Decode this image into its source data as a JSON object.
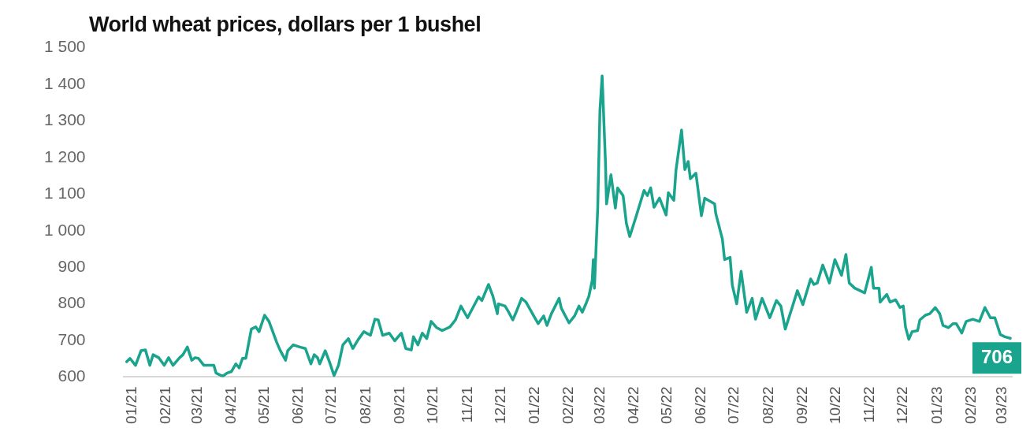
{
  "chart_data": {
    "type": "line",
    "title": "World wheat prices, dollars per 1 bushel",
    "x": [
      "2020-12-27",
      "2020-12-30",
      "2021-01-04",
      "2021-01-09",
      "2021-01-13",
      "2021-01-17",
      "2021-01-20",
      "2021-01-25",
      "2021-01-30",
      "2021-02-03",
      "2021-02-07",
      "2021-02-13",
      "2021-02-16",
      "2021-02-20",
      "2021-02-24",
      "2021-02-27",
      "2021-03-02",
      "2021-03-07",
      "2021-03-11",
      "2021-03-16",
      "2021-03-18",
      "2021-03-24",
      "2021-03-28",
      "2021-04-01",
      "2021-04-05",
      "2021-04-08",
      "2021-04-11",
      "2021-04-14",
      "2021-04-19",
      "2021-04-23",
      "2021-04-26",
      "2021-05-01",
      "2021-05-05",
      "2021-05-12",
      "2021-05-15",
      "2021-05-20",
      "2021-05-22",
      "2021-05-27",
      "2021-06-02",
      "2021-06-07",
      "2021-06-12",
      "2021-06-15",
      "2021-06-18",
      "2021-06-20",
      "2021-06-25",
      "2021-06-29",
      "2021-07-03",
      "2021-07-07",
      "2021-07-11",
      "2021-07-16",
      "2021-07-20",
      "2021-07-25",
      "2021-07-30",
      "2021-08-05",
      "2021-08-09",
      "2021-08-12",
      "2021-08-16",
      "2021-08-22",
      "2021-08-27",
      "2021-09-02",
      "2021-09-06",
      "2021-09-11",
      "2021-09-13",
      "2021-09-17",
      "2021-09-21",
      "2021-09-25",
      "2021-09-29",
      "2021-10-04",
      "2021-10-09",
      "2021-10-16",
      "2021-10-21",
      "2021-10-26",
      "2021-11-01",
      "2021-11-11",
      "2021-11-14",
      "2021-11-20",
      "2021-11-24",
      "2021-11-28",
      "2021-11-29",
      "2021-12-05",
      "2021-12-08",
      "2021-12-12",
      "2021-12-15",
      "2021-12-20",
      "2021-12-24",
      "2021-12-31",
      "2022-01-04",
      "2022-01-09",
      "2022-01-12",
      "2022-01-16",
      "2022-01-23",
      "2022-01-25",
      "2022-02-01",
      "2022-02-06",
      "2022-02-10",
      "2022-02-13",
      "2022-02-16",
      "2022-02-19",
      "2022-02-22",
      "2022-02-23",
      "2022-02-24",
      "2022-02-27",
      "2022-03-01",
      "2022-03-03",
      "2022-03-06",
      "2022-03-07",
      "2022-03-11",
      "2022-03-15",
      "2022-03-17",
      "2022-03-22",
      "2022-03-25",
      "2022-03-28",
      "2022-04-03",
      "2022-04-10",
      "2022-04-13",
      "2022-04-16",
      "2022-04-19",
      "2022-04-24",
      "2022-04-30",
      "2022-05-02",
      "2022-05-07",
      "2022-05-09",
      "2022-05-14",
      "2022-05-17",
      "2022-05-20",
      "2022-05-22",
      "2022-05-27",
      "2022-06-01",
      "2022-06-04",
      "2022-06-13",
      "2022-06-14",
      "2022-06-20",
      "2022-06-22",
      "2022-06-27",
      "2022-06-29",
      "2022-07-03",
      "2022-07-07",
      "2022-07-12",
      "2022-07-17",
      "2022-07-20",
      "2022-07-26",
      "2022-08-02",
      "2022-08-08",
      "2022-08-12",
      "2022-08-16",
      "2022-08-22",
      "2022-08-27",
      "2022-09-01",
      "2022-09-08",
      "2022-09-11",
      "2022-09-14",
      "2022-09-19",
      "2022-09-25",
      "2022-09-30",
      "2022-10-06",
      "2022-10-10",
      "2022-10-13",
      "2022-10-18",
      "2022-10-27",
      "2022-11-02",
      "2022-11-04",
      "2022-11-09",
      "2022-11-10",
      "2022-11-16",
      "2022-11-19",
      "2022-11-24",
      "2022-11-28",
      "2022-12-01",
      "2022-12-03",
      "2022-12-06",
      "2022-12-09",
      "2022-12-14",
      "2022-12-16",
      "2022-12-21",
      "2022-12-25",
      "2022-12-30",
      "2023-01-03",
      "2023-01-06",
      "2023-01-11",
      "2023-01-15",
      "2023-01-18",
      "2023-01-23",
      "2023-01-27",
      "2023-02-02",
      "2023-02-08",
      "2023-02-13",
      "2023-02-18",
      "2023-02-22",
      "2023-02-27",
      "2023-03-03",
      "2023-03-08"
    ],
    "series": [
      {
        "color": "#1aa48e",
        "values": [
          642,
          651,
          632,
          672,
          674,
          632,
          661,
          653,
          632,
          653,
          632,
          653,
          661,
          682,
          646,
          653,
          651,
          632,
          632,
          632,
          611,
          602,
          611,
          615,
          636,
          625,
          651,
          651,
          731,
          737,
          724,
          769,
          752,
          695,
          674,
          646,
          672,
          688,
          682,
          678,
          636,
          661,
          653,
          636,
          672,
          640,
          604,
          632,
          688,
          705,
          678,
          703,
          724,
          714,
          758,
          756,
          714,
          720,
          699,
          720,
          678,
          674,
          710,
          688,
          720,
          705,
          752,
          735,
          727,
          737,
          756,
          794,
          762,
          819,
          809,
          853,
          821,
          773,
          800,
          794,
          779,
          756,
          777,
          815,
          805,
          767,
          746,
          767,
          741,
          773,
          815,
          788,
          748,
          767,
          794,
          777,
          798,
          821,
          864,
          921,
          843,
          1062,
          1328,
          1423,
          1189,
          1073,
          1153,
          1062,
          1117,
          1096,
          1020,
          984,
          1041,
          1110,
          1096,
          1117,
          1064,
          1089,
          1043,
          1104,
          1083,
          1167,
          1275,
          1167,
          1189,
          1142,
          1157,
          1041,
          1089,
          1073,
          1047,
          977,
          921,
          927,
          851,
          800,
          889,
          777,
          815,
          758,
          815,
          762,
          809,
          794,
          731,
          788,
          836,
          798,
          868,
          853,
          857,
          906,
          857,
          921,
          878,
          935,
          857,
          843,
          830,
          900,
          843,
          843,
          805,
          826,
          805,
          811,
          790,
          794,
          737,
          703,
          724,
          727,
          756,
          769,
          773,
          790,
          773,
          741,
          735,
          746,
          746,
          720,
          752,
          758,
          752,
          790,
          762,
          762,
          716,
          710,
          706
        ]
      }
    ],
    "xlim": [
      "2020-12-24",
      "2023-03-10"
    ],
    "xticks": [
      {
        "value": "2021-01-01",
        "label": "01/21"
      },
      {
        "value": "2021-02-01",
        "label": "02/21"
      },
      {
        "value": "2021-03-01",
        "label": "03/21"
      },
      {
        "value": "2021-04-01",
        "label": "04/21"
      },
      {
        "value": "2021-05-01",
        "label": "05/21"
      },
      {
        "value": "2021-06-01",
        "label": "06/21"
      },
      {
        "value": "2021-07-01",
        "label": "07/21"
      },
      {
        "value": "2021-08-01",
        "label": "08/21"
      },
      {
        "value": "2021-09-01",
        "label": "09/21"
      },
      {
        "value": "2021-10-01",
        "label": "10/21"
      },
      {
        "value": "2021-11-01",
        "label": "11/21"
      },
      {
        "value": "2021-12-01",
        "label": "12/21"
      },
      {
        "value": "2022-01-01",
        "label": "01/22"
      },
      {
        "value": "2022-02-01",
        "label": "02/22"
      },
      {
        "value": "2022-03-01",
        "label": "03/22"
      },
      {
        "value": "2022-04-01",
        "label": "04/22"
      },
      {
        "value": "2022-05-01",
        "label": "05/22"
      },
      {
        "value": "2022-06-01",
        "label": "06/22"
      },
      {
        "value": "2022-07-01",
        "label": "07/22"
      },
      {
        "value": "2022-08-01",
        "label": "08/22"
      },
      {
        "value": "2022-09-01",
        "label": "09/22"
      },
      {
        "value": "2022-10-01",
        "label": "10/22"
      },
      {
        "value": "2022-11-01",
        "label": "11/22"
      },
      {
        "value": "2022-12-01",
        "label": "12/22"
      },
      {
        "value": "2023-01-01",
        "label": "01/23"
      },
      {
        "value": "2023-02-01",
        "label": "02/23"
      },
      {
        "value": "2023-03-01",
        "label": "03/23"
      }
    ],
    "ylim": [
      600,
      1500
    ],
    "yticks": [
      600,
      700,
      800,
      900,
      {
        "value": 1000,
        "label": "1 000"
      },
      {
        "value": 1100,
        "label": "1 100"
      },
      {
        "value": 1200,
        "label": "1 200"
      },
      {
        "value": 1300,
        "label": "1 300"
      },
      {
        "value": 1400,
        "label": "1 400"
      },
      {
        "value": 1500,
        "label": "1 500"
      }
    ],
    "annotations": [
      {
        "text": "706",
        "x": "2023-03-08",
        "y": 706
      }
    ],
    "grid": false,
    "legend": false,
    "marker": "none",
    "line_style": "solid"
  }
}
